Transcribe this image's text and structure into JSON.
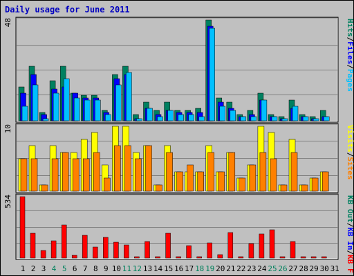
{
  "title": "Daily usage for June 2011",
  "colors": {
    "background": "#c0c0c0",
    "panel": "#c0c0c0",
    "grid": "#808080",
    "hits": "#008060",
    "files": "#0000ff",
    "pages": "#00c0ff",
    "visits": "#ffff00",
    "sites": "#ff8000",
    "kb_in": "#0000ff",
    "kb_out": "#008060",
    "kb_f": "#ff0000",
    "day_normal": "#000000",
    "day_weekend": "#00805c"
  },
  "chart_data": [
    {
      "type": "bar",
      "title": "Daily usage for June 2011",
      "categories": [
        "1",
        "2",
        "3",
        "4",
        "5",
        "6",
        "7",
        "8",
        "9",
        "10",
        "11",
        "12",
        "13",
        "14",
        "15",
        "16",
        "17",
        "18",
        "19",
        "20",
        "21",
        "22",
        "23",
        "24",
        "25",
        "26",
        "27",
        "28",
        "29",
        "30",
        "31"
      ],
      "weekend_days": [
        "4",
        "5",
        "11",
        "12",
        "18",
        "19",
        "25",
        "26"
      ],
      "ymax_label": "48",
      "ylim": [
        0,
        48
      ],
      "legend": [
        "Pages",
        "Files",
        "Hits"
      ],
      "series": [
        {
          "name": "Hits",
          "values": [
            16,
            26,
            4,
            19,
            26,
            13,
            12,
            12,
            5,
            22,
            26,
            3,
            9,
            5,
            9,
            5,
            5,
            6,
            48,
            11,
            9,
            3,
            5,
            13,
            3,
            2,
            10,
            3,
            2,
            5,
            0
          ]
        },
        {
          "name": "Files",
          "values": [
            13,
            22,
            3,
            15,
            16,
            13,
            11,
            11,
            4,
            20,
            22,
            1,
            6,
            3,
            5,
            4,
            4,
            4,
            45,
            9,
            6,
            2,
            3,
            10,
            2,
            1,
            6,
            2,
            1,
            2,
            0
          ]
        },
        {
          "name": "Pages",
          "values": [
            7,
            17,
            1,
            13,
            20,
            11,
            10,
            10,
            3,
            17,
            23,
            1,
            6,
            2,
            5,
            3,
            3,
            2,
            44,
            7,
            5,
            2,
            2,
            10,
            2,
            1,
            7,
            2,
            1,
            2,
            0
          ]
        }
      ]
    },
    {
      "type": "bar",
      "ymax_label": "10",
      "ylim": [
        0,
        10
      ],
      "legend": [
        "Sites",
        "Visits"
      ],
      "series": [
        {
          "name": "Visits",
          "values": [
            5,
            7,
            1,
            7,
            6,
            6,
            8,
            9,
            4,
            10,
            10,
            6,
            7,
            1,
            7,
            3,
            3,
            3,
            7,
            3,
            6,
            2,
            4,
            10,
            9,
            1,
            8,
            1,
            2,
            3,
            0
          ]
        },
        {
          "name": "Sites",
          "values": [
            5,
            5,
            1,
            5,
            6,
            5,
            5,
            6,
            2,
            7,
            7,
            5,
            7,
            1,
            6,
            3,
            4,
            3,
            6,
            3,
            6,
            2,
            4,
            6,
            5,
            1,
            6,
            1,
            2,
            3,
            0
          ]
        }
      ]
    },
    {
      "type": "bar",
      "ymax_label": "534",
      "ylim": [
        0,
        534
      ],
      "legend": [
        "KB F",
        "KB In",
        "KB Out"
      ],
      "series": [
        {
          "name": "KB F",
          "values": [
            534,
            214,
            65,
            151,
            289,
            22,
            199,
            93,
            180,
            137,
            114,
            4,
            142,
            7,
            216,
            10,
            109,
            4,
            129,
            28,
            224,
            4,
            123,
            208,
            243,
            5,
            144,
            4,
            4,
            4,
            0
          ]
        }
      ]
    }
  ]
}
